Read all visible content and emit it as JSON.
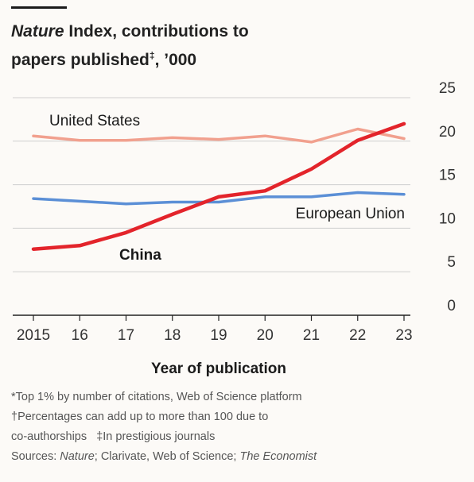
{
  "title": {
    "italic": "Nature",
    "rest_line1": " Index, contributions to",
    "line2": "papers published",
    "line2_sup": "‡",
    "line2_tail": ", ’000"
  },
  "footnotes": {
    "line1": "*Top 1% by number of citations, Web of Science platform",
    "line2": "†Percentages can add up to more than 100 due to",
    "line3a": "co-authorships",
    "line3b": "‡In prestigious journals",
    "sources_prefix": "Sources: ",
    "sources_nature": "Nature",
    "sources_mid": "; Clarivate, Web of Science; ",
    "sources_economist": "The Economist"
  },
  "chart_data": {
    "type": "line",
    "xlabel": "Year of publication",
    "ylabel": "",
    "x": [
      2015,
      2016,
      2017,
      2018,
      2019,
      2020,
      2021,
      2022,
      2023
    ],
    "x_tick_labels": [
      "2015",
      "16",
      "17",
      "18",
      "19",
      "20",
      "21",
      "22",
      "23"
    ],
    "ylim": [
      0,
      25
    ],
    "y_ticks": [
      0,
      5,
      10,
      15,
      20,
      25
    ],
    "y_axis_side": "right",
    "grid": true,
    "series": [
      {
        "name": "United States",
        "color": "#f1a08e",
        "values": [
          20.6,
          20.1,
          20.1,
          20.4,
          20.2,
          20.6,
          19.9,
          21.4,
          20.3
        ]
      },
      {
        "name": "European Union",
        "color": "#5b8fd6",
        "values": [
          13.4,
          13.1,
          12.8,
          13.0,
          13.0,
          13.6,
          13.6,
          14.1,
          13.9
        ]
      },
      {
        "name": "China",
        "color": "#e3242b",
        "values": [
          7.6,
          8.0,
          9.5,
          11.6,
          13.6,
          14.3,
          16.8,
          20.1,
          22.0
        ]
      }
    ]
  }
}
